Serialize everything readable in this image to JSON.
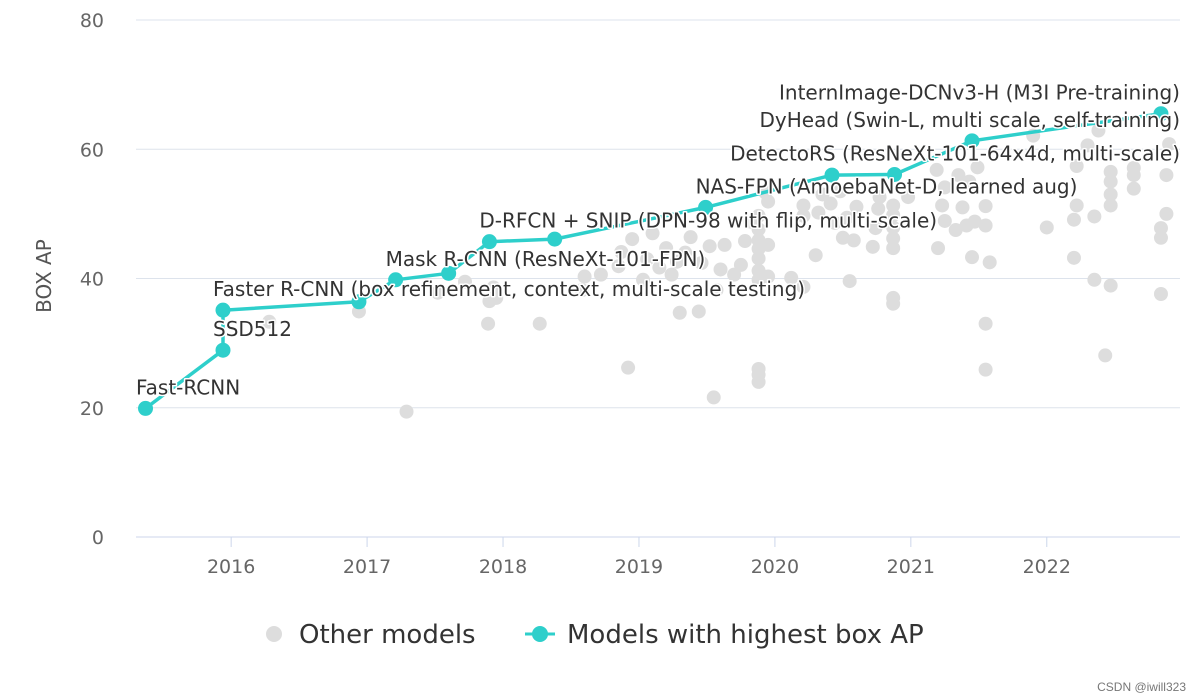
{
  "chart_data": {
    "type": "scatter",
    "title": "",
    "xlabel": "",
    "ylabel": "BOX AP",
    "xlim": [
      2015.3,
      2022.98
    ],
    "ylim": [
      0,
      80
    ],
    "grid": true,
    "x_ticks": [
      2016,
      2017,
      2018,
      2019,
      2020,
      2021,
      2022
    ],
    "y_ticks": [
      0,
      20,
      40,
      60,
      80
    ],
    "legend_position": "bottom-center",
    "colors": {
      "sota": "#2ecfcb",
      "other": "#dddddd",
      "grid": "#dde3ec",
      "axis": "#ccd6eb"
    },
    "legend": {
      "other": "Other models",
      "sota": "Models with highest box AP"
    },
    "series": [
      {
        "name": "Models with highest box AP",
        "points": [
          {
            "x": 2015.37,
            "y": 19.9,
            "label": "Fast-RCNN"
          },
          {
            "x": 2015.94,
            "y": 28.9,
            "label": "SSD512"
          },
          {
            "x": 2015.94,
            "y": 35.1,
            "label": "Faster R-CNN (box refinement, context, multi-scale testing)"
          },
          {
            "x": 2016.94,
            "y": 36.4,
            "label": ""
          },
          {
            "x": 2017.21,
            "y": 39.8,
            "label": "Mask R-CNN (ResNeXt-101-FPN)"
          },
          {
            "x": 2017.6,
            "y": 40.8,
            "label": ""
          },
          {
            "x": 2017.9,
            "y": 45.7,
            "label": "D-RFCN + SNIP (DPN-98 with flip, multi-scale)"
          },
          {
            "x": 2018.38,
            "y": 46.1,
            "label": ""
          },
          {
            "x": 2019.49,
            "y": 51.0,
            "label": "NAS-FPN (AmoebaNet-D, learned aug)"
          },
          {
            "x": 2020.42,
            "y": 56.0,
            "label": ""
          },
          {
            "x": 2020.88,
            "y": 56.1,
            "label": "DetectoRS (ResNeXt-101-64x4d, multi-scale)"
          },
          {
            "x": 2021.45,
            "y": 61.3,
            "label": "DyHead (Swin-L, multi scale, self-training)"
          },
          {
            "x": 2022.84,
            "y": 65.5,
            "label": "InternImage-DCNv3-H (M3I Pre-training)"
          }
        ]
      },
      {
        "name": "Other models",
        "points": [
          {
            "x": 2016.28,
            "y": 33.3
          },
          {
            "x": 2016.94,
            "y": 34.9
          },
          {
            "x": 2017.29,
            "y": 19.4
          },
          {
            "x": 2017.52,
            "y": 37.8
          },
          {
            "x": 2017.72,
            "y": 39.5
          },
          {
            "x": 2017.89,
            "y": 33.0
          },
          {
            "x": 2017.9,
            "y": 36.5
          },
          {
            "x": 2017.95,
            "y": 37.0
          },
          {
            "x": 2017.93,
            "y": 38.6
          },
          {
            "x": 2018.27,
            "y": 33.0
          },
          {
            "x": 2018.58,
            "y": 38.2
          },
          {
            "x": 2018.6,
            "y": 40.3
          },
          {
            "x": 2018.72,
            "y": 40.6
          },
          {
            "x": 2018.85,
            "y": 41.9
          },
          {
            "x": 2018.87,
            "y": 44.1
          },
          {
            "x": 2018.92,
            "y": 26.2
          },
          {
            "x": 2018.95,
            "y": 46.1
          },
          {
            "x": 2019.03,
            "y": 39.8
          },
          {
            "x": 2019.06,
            "y": 43.0
          },
          {
            "x": 2019.1,
            "y": 47.0
          },
          {
            "x": 2019.15,
            "y": 41.7
          },
          {
            "x": 2019.2,
            "y": 44.7
          },
          {
            "x": 2019.24,
            "y": 40.6
          },
          {
            "x": 2019.28,
            "y": 42.6
          },
          {
            "x": 2019.3,
            "y": 34.7
          },
          {
            "x": 2019.34,
            "y": 44.0
          },
          {
            "x": 2019.38,
            "y": 46.4
          },
          {
            "x": 2019.44,
            "y": 34.9
          },
          {
            "x": 2019.46,
            "y": 42.4
          },
          {
            "x": 2019.52,
            "y": 45.0
          },
          {
            "x": 2019.55,
            "y": 21.6
          },
          {
            "x": 2019.57,
            "y": 38.2
          },
          {
            "x": 2019.6,
            "y": 41.4
          },
          {
            "x": 2019.63,
            "y": 45.2
          },
          {
            "x": 2019.7,
            "y": 40.6
          },
          {
            "x": 2019.75,
            "y": 42.1
          },
          {
            "x": 2019.78,
            "y": 45.8
          },
          {
            "x": 2019.82,
            "y": 48.8
          },
          {
            "x": 2019.88,
            "y": 24.0
          },
          {
            "x": 2019.88,
            "y": 25.1
          },
          {
            "x": 2019.88,
            "y": 26.0
          },
          {
            "x": 2019.88,
            "y": 39.8
          },
          {
            "x": 2019.88,
            "y": 41.2
          },
          {
            "x": 2019.88,
            "y": 43.1
          },
          {
            "x": 2019.88,
            "y": 44.6
          },
          {
            "x": 2019.88,
            "y": 45.9
          },
          {
            "x": 2019.88,
            "y": 47.6
          },
          {
            "x": 2019.88,
            "y": 49.7
          },
          {
            "x": 2019.95,
            "y": 40.3
          },
          {
            "x": 2019.95,
            "y": 45.2
          },
          {
            "x": 2019.95,
            "y": 51.9
          },
          {
            "x": 2019.93,
            "y": 53.3
          },
          {
            "x": 2020.12,
            "y": 40.1
          },
          {
            "x": 2020.21,
            "y": 38.7
          },
          {
            "x": 2020.21,
            "y": 49.7
          },
          {
            "x": 2020.21,
            "y": 51.3
          },
          {
            "x": 2020.3,
            "y": 43.6
          },
          {
            "x": 2020.32,
            "y": 50.2
          },
          {
            "x": 2020.35,
            "y": 53.0
          },
          {
            "x": 2020.41,
            "y": 51.6
          },
          {
            "x": 2020.44,
            "y": 48.6
          },
          {
            "x": 2020.48,
            "y": 53.5
          },
          {
            "x": 2020.5,
            "y": 46.3
          },
          {
            "x": 2020.53,
            "y": 49.4
          },
          {
            "x": 2020.55,
            "y": 39.6
          },
          {
            "x": 2020.58,
            "y": 45.9
          },
          {
            "x": 2020.6,
            "y": 51.1
          },
          {
            "x": 2020.72,
            "y": 44.9
          },
          {
            "x": 2020.74,
            "y": 47.8
          },
          {
            "x": 2020.76,
            "y": 50.8
          },
          {
            "x": 2020.77,
            "y": 52.6
          },
          {
            "x": 2020.87,
            "y": 36.1
          },
          {
            "x": 2020.87,
            "y": 37.0
          },
          {
            "x": 2020.87,
            "y": 44.7
          },
          {
            "x": 2020.87,
            "y": 46.2
          },
          {
            "x": 2020.87,
            "y": 47.9
          },
          {
            "x": 2020.87,
            "y": 49.8
          },
          {
            "x": 2020.87,
            "y": 51.3
          },
          {
            "x": 2020.98,
            "y": 52.6
          },
          {
            "x": 2021.19,
            "y": 56.8
          },
          {
            "x": 2021.2,
            "y": 44.7
          },
          {
            "x": 2021.23,
            "y": 51.3
          },
          {
            "x": 2021.25,
            "y": 54.1
          },
          {
            "x": 2021.25,
            "y": 48.9
          },
          {
            "x": 2021.33,
            "y": 47.5
          },
          {
            "x": 2021.35,
            "y": 56.0
          },
          {
            "x": 2021.38,
            "y": 51.0
          },
          {
            "x": 2021.41,
            "y": 48.2
          },
          {
            "x": 2021.43,
            "y": 55.0
          },
          {
            "x": 2021.45,
            "y": 43.3
          },
          {
            "x": 2021.47,
            "y": 48.8
          },
          {
            "x": 2021.49,
            "y": 57.2
          },
          {
            "x": 2021.55,
            "y": 33.0
          },
          {
            "x": 2021.55,
            "y": 25.9
          },
          {
            "x": 2021.55,
            "y": 48.2
          },
          {
            "x": 2021.55,
            "y": 51.2
          },
          {
            "x": 2021.58,
            "y": 42.5
          },
          {
            "x": 2021.9,
            "y": 62.1
          },
          {
            "x": 2022.0,
            "y": 47.9
          },
          {
            "x": 2022.2,
            "y": 43.2
          },
          {
            "x": 2022.2,
            "y": 49.1
          },
          {
            "x": 2022.22,
            "y": 51.3
          },
          {
            "x": 2022.22,
            "y": 57.4
          },
          {
            "x": 2022.3,
            "y": 60.6
          },
          {
            "x": 2022.35,
            "y": 39.8
          },
          {
            "x": 2022.35,
            "y": 49.6
          },
          {
            "x": 2022.38,
            "y": 62.9
          },
          {
            "x": 2022.43,
            "y": 28.1
          },
          {
            "x": 2022.47,
            "y": 38.9
          },
          {
            "x": 2022.47,
            "y": 51.3
          },
          {
            "x": 2022.47,
            "y": 53.0
          },
          {
            "x": 2022.47,
            "y": 55.0
          },
          {
            "x": 2022.47,
            "y": 56.5
          },
          {
            "x": 2022.64,
            "y": 53.9
          },
          {
            "x": 2022.64,
            "y": 56.0
          },
          {
            "x": 2022.64,
            "y": 57.1
          },
          {
            "x": 2022.84,
            "y": 37.6
          },
          {
            "x": 2022.84,
            "y": 46.3
          },
          {
            "x": 2022.84,
            "y": 47.8
          },
          {
            "x": 2022.88,
            "y": 50.0
          },
          {
            "x": 2022.88,
            "y": 56.0
          },
          {
            "x": 2022.9,
            "y": 60.8
          }
        ]
      }
    ]
  },
  "watermark": "CSDN @iwill323"
}
